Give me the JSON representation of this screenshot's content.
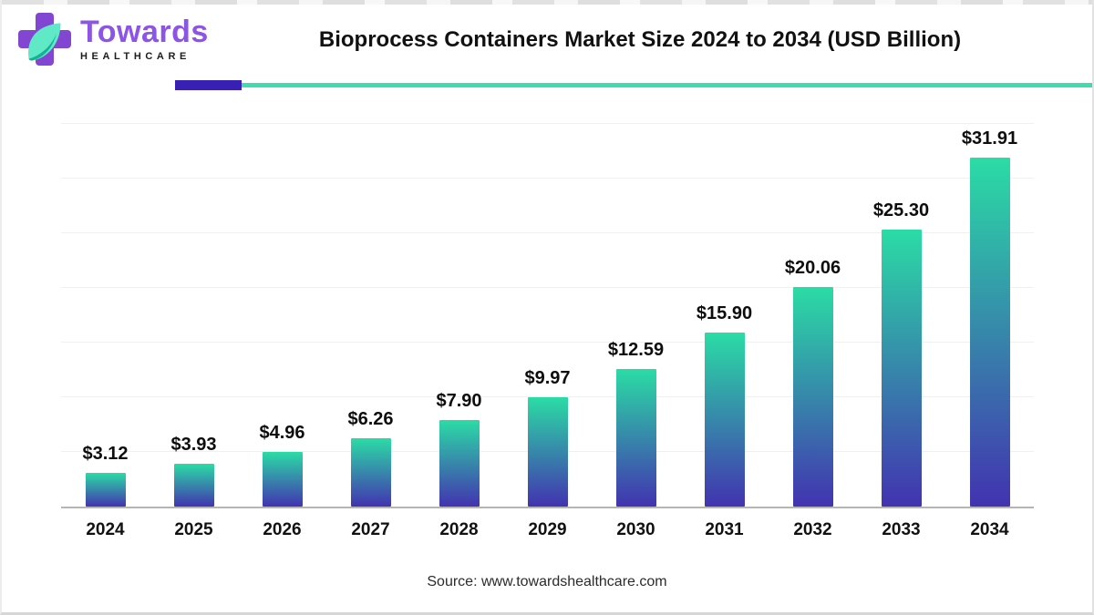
{
  "header": {
    "logo": {
      "brand_name": "Towards",
      "brand_subtitle": "HEALTHCARE"
    },
    "title": "Bioprocess Containers Market Size 2024 to 2034 (USD Billion)"
  },
  "footer": {
    "source_text": "Source: www.towardshealthcare.com"
  },
  "colors": {
    "logo_cross_purple": "#8246d2",
    "brand_purple": "#8d55e6",
    "leaf_mint": "#5fe9c6",
    "leaf_dark_teal": "#12b392",
    "divider_purple": "#3920b5",
    "divider_teal": "#3edcb0",
    "bar_gradient_top": "#2bdca5",
    "bar_gradient_bottom": "#4233b0",
    "axis_line": "#b5b5b5",
    "gridline": "#f0f0f0",
    "title_text": "#111111",
    "source_text": "#2b2b2b"
  },
  "chart_data": {
    "type": "bar",
    "title": "Bioprocess Containers Market Size 2024 to 2034 (USD Billion)",
    "categories": [
      "2024",
      "2025",
      "2026",
      "2027",
      "2028",
      "2029",
      "2030",
      "2031",
      "2032",
      "2033",
      "2034"
    ],
    "values": [
      3.12,
      3.93,
      4.96,
      6.26,
      7.9,
      9.97,
      12.59,
      15.9,
      20.06,
      25.3,
      31.91
    ],
    "value_labels": [
      "$3.12",
      "$3.93",
      "$4.96",
      "$6.26",
      "$7.90",
      "$9.97",
      "$12.59",
      "$15.90",
      "$20.06",
      "$25.30",
      "$31.91"
    ],
    "xlabel": "",
    "ylabel": "",
    "ylim": [
      0,
      35
    ],
    "gridline_step": 5,
    "grid": "horizontal",
    "legend_position": "none",
    "bar_gradient_top": "#2bdca5",
    "bar_gradient_bottom": "#4233b0"
  }
}
